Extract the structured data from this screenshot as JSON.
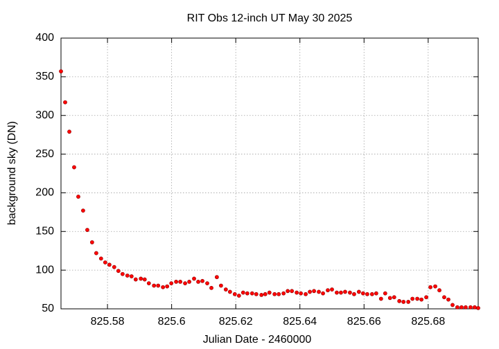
{
  "chart_data": {
    "type": "scatter",
    "title": "RIT Obs 12-inch UT May 30 2025",
    "x_label": "Julian Date - 2460000",
    "y_label": "background sky (DN)",
    "grid": true,
    "xlim": [
      825.5655,
      825.6956
    ],
    "ylim": [
      50,
      400
    ],
    "xticks": [
      825.58,
      825.6,
      825.62,
      825.64,
      825.66,
      825.68
    ],
    "yticks": [
      50,
      100,
      150,
      200,
      250,
      300,
      350,
      400
    ],
    "series": [
      {
        "color": "#ff0000",
        "x": [
          825.5655,
          825.5668,
          825.5681,
          825.5696,
          825.5709,
          825.5724,
          825.5737,
          825.5752,
          825.5765,
          825.578,
          825.5793,
          825.5806,
          825.5821,
          825.5834,
          825.5847,
          825.5862,
          825.5875,
          825.5888,
          825.5904,
          825.5916,
          825.5929,
          825.5945,
          825.5958,
          825.5973,
          825.5986,
          825.5999,
          825.6014,
          825.6027,
          825.6042,
          825.6055,
          825.607,
          825.6083,
          825.6096,
          825.6111,
          825.6124,
          825.6141,
          825.6154,
          825.6169,
          825.6182,
          825.6197,
          825.621,
          825.6223,
          825.6236,
          825.6251,
          825.6264,
          825.628,
          825.6292,
          825.6305,
          825.6321,
          825.6334,
          825.6349,
          825.6362,
          825.6375,
          825.639,
          825.6403,
          825.6418,
          825.6431,
          825.6444,
          825.6459,
          825.6472,
          825.6487,
          825.65,
          825.6515,
          825.6528,
          825.6541,
          825.6556,
          825.6569,
          825.6584,
          825.6597,
          825.661,
          825.6625,
          825.6638,
          825.6653,
          825.6666,
          825.6681,
          825.6694,
          825.671,
          825.6723,
          825.6738,
          825.6751,
          825.6766,
          825.6779,
          825.6794,
          825.6807,
          825.6822,
          825.6835,
          825.685,
          825.6863,
          825.6876,
          825.6891,
          825.6904,
          825.6917,
          825.6932,
          825.6945,
          825.6956
        ],
        "values": [
          357,
          317,
          279,
          233,
          195,
          177,
          152,
          136,
          122,
          115,
          110,
          107,
          104,
          99,
          95,
          93,
          92,
          88,
          89,
          88,
          83,
          80,
          80,
          78,
          79,
          83,
          85,
          85,
          83,
          85,
          89,
          85,
          86,
          83,
          77,
          91,
          80,
          75,
          72,
          69,
          67,
          71,
          70,
          70,
          69,
          68,
          69,
          71,
          69,
          69,
          70,
          73,
          73,
          71,
          70,
          69,
          72,
          73,
          72,
          70,
          74,
          75,
          71,
          71,
          72,
          71,
          69,
          72,
          70,
          69,
          69,
          70,
          63,
          70,
          64,
          65,
          60,
          59,
          59,
          63,
          63,
          62,
          65,
          78,
          79,
          74,
          65,
          62,
          55,
          52,
          52,
          52,
          52,
          52,
          51
        ]
      }
    ]
  }
}
